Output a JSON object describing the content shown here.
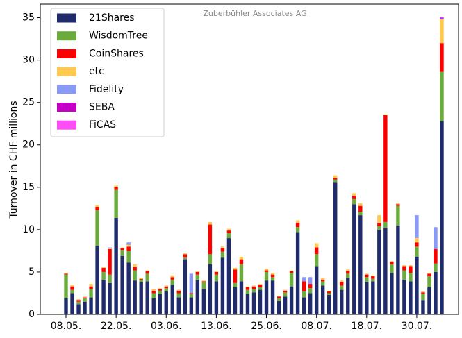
{
  "chart_data": {
    "type": "stacked_bar",
    "annotation": "Zuberbühler Associates AG",
    "ylabel": "Turnover in CHF millions",
    "categories": [
      "08.05.",
      null,
      null,
      null,
      null,
      null,
      null,
      null,
      "22.05.",
      null,
      null,
      null,
      null,
      null,
      null,
      null,
      "03.06.",
      null,
      null,
      null,
      null,
      null,
      null,
      null,
      "13.06.",
      null,
      null,
      null,
      null,
      null,
      null,
      null,
      "25.06.",
      null,
      null,
      null,
      null,
      null,
      null,
      null,
      "08.07.",
      null,
      null,
      null,
      null,
      null,
      null,
      null,
      "18.07.",
      null,
      null,
      null,
      null,
      null,
      null,
      null,
      "30.07.",
      null,
      null,
      null,
      null
    ],
    "series": [
      {
        "name": "21Shares",
        "color": "#1f2b6b",
        "values": [
          1.9,
          2.5,
          1.2,
          1.5,
          2.0,
          8.1,
          4.1,
          3.7,
          11.4,
          6.9,
          6.1,
          4.0,
          3.8,
          3.9,
          1.9,
          2.4,
          2.7,
          3.5,
          2.0,
          6.5,
          2.0,
          4.1,
          3.0,
          5.9,
          3.9,
          6.7,
          9.0,
          3.2,
          3.9,
          2.4,
          2.6,
          2.9,
          4.0,
          4.0,
          1.6,
          2.1,
          3.3,
          9.7,
          2.0,
          2.5,
          5.7,
          3.4,
          2.3,
          15.6,
          2.9,
          4.3,
          13.0,
          11.7,
          3.8,
          3.9,
          10.0,
          10.2,
          4.9,
          10.5,
          4.1,
          3.9,
          6.8,
          1.7,
          3.2,
          5.0,
          22.8
        ]
      },
      {
        "name": "WisdomTree",
        "color": "#6aab3c",
        "values": [
          2.8,
          0.4,
          0.3,
          0.4,
          1.0,
          4.2,
          0.9,
          1.0,
          3.3,
          0.7,
          1.4,
          1.2,
          0.3,
          0.9,
          0.6,
          0.4,
          0.4,
          0.6,
          0.5,
          0.2,
          0.4,
          0.6,
          0.8,
          1.2,
          0.8,
          0.7,
          0.6,
          0.5,
          2.0,
          0.5,
          0.4,
          0.3,
          1.0,
          0.4,
          0.3,
          0.5,
          1.6,
          0.6,
          0.7,
          0.6,
          1.4,
          0.5,
          0.2,
          0.3,
          0.5,
          0.5,
          0.6,
          0.4,
          0.6,
          0.3,
          0.4,
          0.7,
          1.0,
          2.3,
          1.1,
          1.0,
          1.2,
          0.7,
          1.3,
          1.0,
          5.8
        ]
      },
      {
        "name": "CoinShares",
        "color": "#ff0000",
        "values": [
          0.1,
          0.4,
          0.2,
          0.1,
          0.3,
          0.4,
          0.5,
          3.0,
          0.3,
          0.2,
          0.5,
          0.4,
          0.1,
          0.3,
          0.3,
          0.2,
          0.2,
          0.3,
          0.3,
          0.4,
          0.1,
          0.3,
          0.1,
          3.5,
          0.3,
          0.4,
          0.3,
          1.6,
          0.6,
          0.3,
          0.3,
          0.3,
          0.2,
          0.3,
          0.2,
          0.2,
          0.2,
          0.5,
          1.2,
          0.5,
          0.8,
          0.2,
          0.2,
          0.2,
          0.4,
          0.3,
          0.4,
          0.7,
          0.3,
          0.3,
          0.4,
          12.6,
          0.3,
          0.2,
          0.5,
          0.8,
          0.5,
          0.2,
          0.3,
          1.7,
          3.4
        ]
      },
      {
        "name": "etc",
        "color": "#ffc94f",
        "values": [
          0.1,
          0.2,
          0.1,
          0.1,
          0.3,
          0.2,
          0.1,
          0.1,
          0.2,
          0.1,
          0.2,
          0.3,
          0.1,
          0.1,
          0.2,
          0.1,
          0.1,
          0.2,
          0.1,
          0.1,
          0,
          0.1,
          0.1,
          0.3,
          0.1,
          0.2,
          0.2,
          0.2,
          0.3,
          0.1,
          0.1,
          0.1,
          0.2,
          0.2,
          0.1,
          0.1,
          0.1,
          0.3,
          0,
          0,
          0.5,
          0.2,
          0.1,
          0.3,
          0.2,
          0.2,
          0.3,
          0.3,
          0.1,
          0.1,
          0.9,
          0.1,
          0.1,
          0.1,
          0.1,
          0.1,
          0.5,
          0.1,
          0.1,
          0,
          2.8
        ]
      },
      {
        "name": "Fidelity",
        "color": "#8a99f5",
        "values": [
          0,
          0,
          0,
          0,
          0,
          0,
          0,
          0.1,
          0,
          0,
          0.3,
          0,
          0,
          0,
          0,
          0,
          0,
          0,
          0,
          0,
          2.3,
          0,
          0,
          0,
          0,
          0,
          0,
          0,
          0,
          0,
          0,
          0,
          0,
          0,
          0,
          0,
          0,
          0,
          0.5,
          0.8,
          0,
          0,
          0,
          0,
          0,
          0,
          0,
          0,
          0,
          0,
          0,
          0,
          0,
          0,
          0,
          0,
          2.7,
          0,
          0,
          2.6,
          0.1
        ]
      },
      {
        "name": "SEBA",
        "color": "#c400c4",
        "values": [
          0,
          0,
          0,
          0,
          0,
          0,
          0,
          0,
          0,
          0,
          0,
          0,
          0,
          0,
          0,
          0,
          0,
          0,
          0,
          0,
          0,
          0,
          0,
          0,
          0,
          0,
          0,
          0,
          0,
          0,
          0,
          0,
          0,
          0,
          0,
          0,
          0,
          0,
          0,
          0,
          0,
          0,
          0,
          0,
          0,
          0,
          0,
          0,
          0,
          0,
          0,
          0,
          0,
          0,
          0,
          0,
          0,
          0,
          0,
          0,
          0.1
        ]
      },
      {
        "name": "FiCAS",
        "color": "#ff4df5",
        "values": [
          0,
          0,
          0,
          0,
          0,
          0,
          0,
          0,
          0,
          0,
          0,
          0,
          0,
          0,
          0,
          0,
          0,
          0,
          0,
          0,
          0,
          0,
          0,
          0,
          0,
          0,
          0,
          0,
          0,
          0,
          0,
          0,
          0,
          0,
          0,
          0,
          0,
          0,
          0,
          0,
          0,
          0,
          0,
          0,
          0,
          0,
          0,
          0,
          0,
          0,
          0,
          0,
          0,
          0,
          0,
          0,
          0,
          0,
          0,
          0,
          0.1
        ]
      }
    ],
    "ylim": [
      0,
      36.6
    ],
    "yticks": [
      0,
      5,
      10,
      15,
      20,
      25,
      30,
      35
    ],
    "grid": false,
    "legend": "upper left"
  }
}
